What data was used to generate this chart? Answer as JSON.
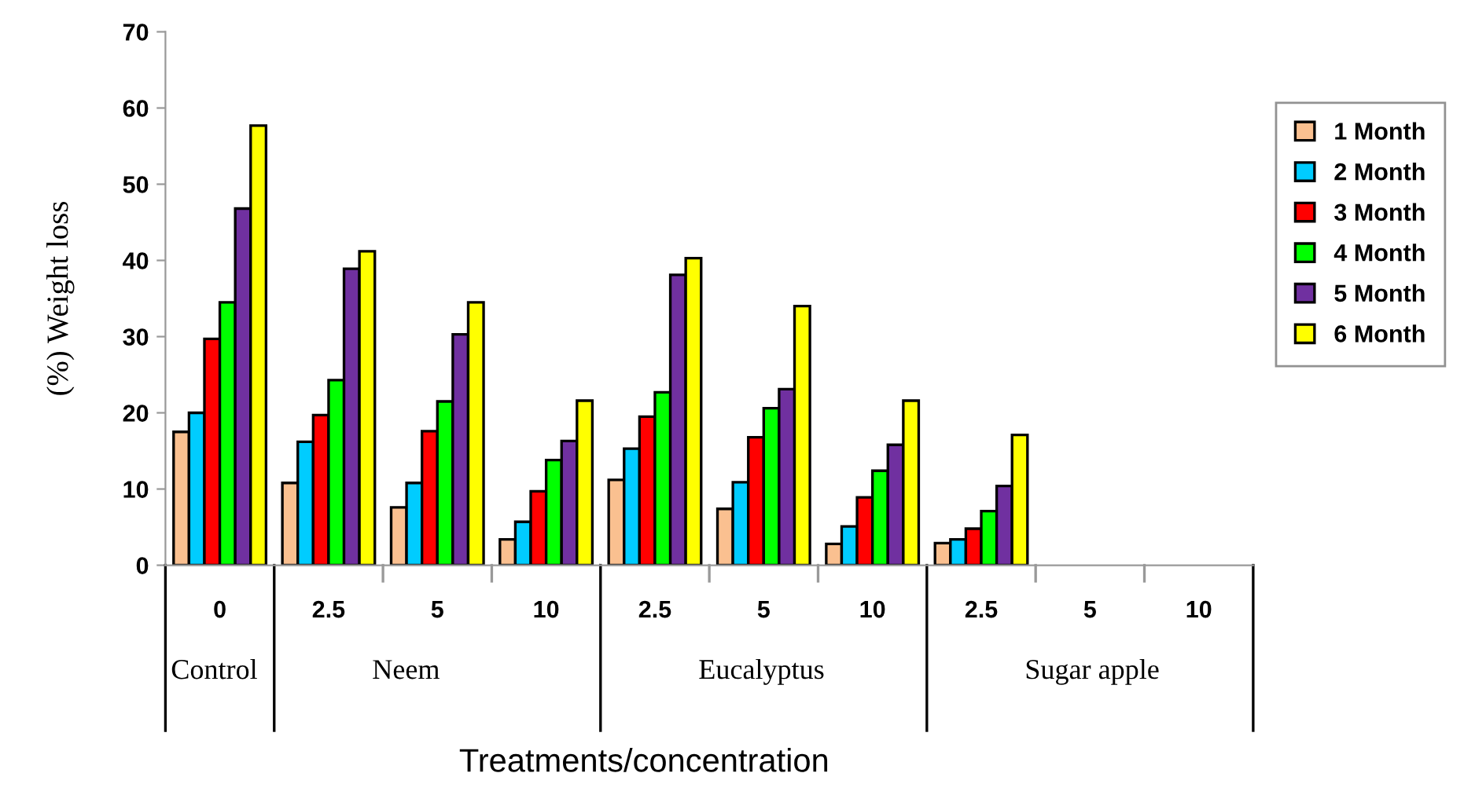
{
  "chart_data": {
    "type": "bar",
    "xlabel": "Treatments/concentration",
    "ylabel": "(%) Weight loss",
    "categories": [
      "0",
      "2.5",
      "5",
      "10",
      "2.5",
      "5",
      "10",
      "2.5",
      "5",
      "10"
    ],
    "annotations": [
      "Control",
      "Neem",
      "Eucalyptus",
      "Sugar apple"
    ],
    "series": [
      {
        "name": "1 Month",
        "color": "#fac090",
        "values": [
          17.5,
          10.8,
          7.6,
          3.4,
          11.2,
          7.4,
          2.8,
          2.9,
          null,
          null
        ]
      },
      {
        "name": "2 Month",
        "color": "#00ccff",
        "values": [
          20.0,
          16.2,
          10.8,
          5.7,
          15.3,
          10.9,
          5.1,
          3.4,
          null,
          null
        ]
      },
      {
        "name": "3 Month",
        "color": "#ff0000",
        "values": [
          29.7,
          19.7,
          17.6,
          9.7,
          19.5,
          16.8,
          8.9,
          4.8,
          null,
          null
        ]
      },
      {
        "name": "4 Month",
        "color": "#00ff00",
        "values": [
          34.5,
          24.3,
          21.5,
          13.8,
          22.7,
          20.6,
          12.4,
          7.1,
          null,
          null
        ]
      },
      {
        "name": "5 Month",
        "color": "#7030a0",
        "values": [
          46.8,
          38.9,
          30.3,
          16.3,
          38.1,
          23.1,
          15.8,
          10.4,
          null,
          null
        ]
      },
      {
        "name": "6 Month",
        "color": "#ffff00",
        "values": [
          57.7,
          41.2,
          34.5,
          21.6,
          40.3,
          34.0,
          21.6,
          17.1,
          null,
          null
        ]
      }
    ],
    "ylim": [
      0,
      70
    ],
    "yticks": [
      0,
      10,
      20,
      30,
      40,
      50,
      60,
      70
    ],
    "grid": false,
    "legend": "right"
  }
}
